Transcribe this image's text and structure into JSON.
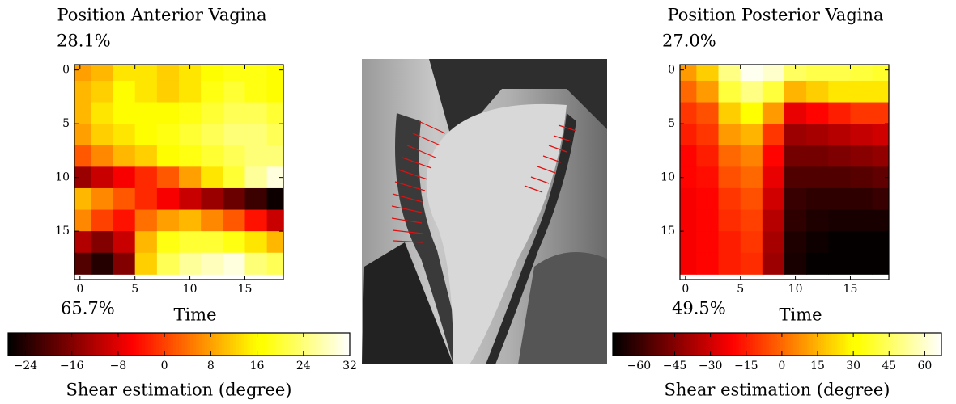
{
  "chart_data": [
    {
      "type": "heatmap",
      "title": "Position Anterior Vagina",
      "annotations": [
        "28.1%",
        "65.7%"
      ],
      "xlabel": "Time",
      "x": [
        0,
        2,
        4,
        6,
        8,
        10,
        12,
        14,
        16,
        18
      ],
      "y": [
        0,
        2,
        4,
        6,
        8,
        10,
        12,
        14,
        16,
        18
      ],
      "z": [
        [
          8,
          10,
          14,
          14,
          12,
          14,
          16,
          18,
          18,
          16
        ],
        [
          10,
          12,
          16,
          14,
          12,
          14,
          18,
          20,
          18,
          16
        ],
        [
          10,
          14,
          16,
          16,
          16,
          18,
          20,
          22,
          22,
          20
        ],
        [
          8,
          12,
          14,
          16,
          18,
          20,
          22,
          24,
          24,
          22
        ],
        [
          2,
          6,
          10,
          12,
          16,
          18,
          20,
          22,
          24,
          24
        ],
        [
          -14,
          -10,
          -6,
          -2,
          2,
          8,
          14,
          20,
          26,
          30
        ],
        [
          10,
          6,
          2,
          -2,
          -6,
          -10,
          -14,
          -18,
          -22,
          -26
        ],
        [
          6,
          0,
          -4,
          4,
          8,
          10,
          6,
          2,
          -4,
          -10
        ],
        [
          -12,
          -16,
          -10,
          10,
          18,
          20,
          20,
          18,
          14,
          10
        ],
        [
          -20,
          -24,
          -16,
          12,
          22,
          26,
          28,
          30,
          24,
          22
        ]
      ],
      "xlim": [
        -0.5,
        18.5
      ],
      "ylim": [
        19.5,
        -0.5
      ],
      "xticks": [
        0,
        5,
        10,
        15
      ],
      "yticks": [
        0,
        5,
        10,
        15
      ],
      "colormap": "hot",
      "zlim": [
        -27,
        32
      ],
      "zticks": [
        {
          "value": -24,
          "label": "−24"
        },
        {
          "value": -16,
          "label": "−16"
        },
        {
          "value": -8,
          "label": "−8"
        },
        0,
        8,
        16,
        24,
        32
      ],
      "colorbar_label": "Shear estimation (degree)"
    },
    {
      "type": "heatmap",
      "title": "Position Posterior Vagina",
      "annotations": [
        "27.0%",
        "49.5%"
      ],
      "xlabel": "Time",
      "x": [
        0,
        2,
        4,
        6,
        8,
        10,
        12,
        14,
        16,
        18
      ],
      "y": [
        0,
        2,
        4,
        6,
        8,
        10,
        12,
        14,
        16,
        18
      ],
      "z": [
        [
          10,
          20,
          50,
          65,
          60,
          45,
          42,
          42,
          40,
          38
        ],
        [
          0,
          10,
          40,
          50,
          40,
          15,
          20,
          25,
          25,
          25
        ],
        [
          -10,
          -5,
          20,
          30,
          10,
          -25,
          -20,
          -15,
          -10,
          -10
        ],
        [
          -15,
          -10,
          10,
          15,
          -10,
          -40,
          -38,
          -35,
          -32,
          -30
        ],
        [
          -20,
          -15,
          0,
          5,
          -20,
          -48,
          -48,
          -46,
          -44,
          -42
        ],
        [
          -20,
          -18,
          -5,
          0,
          -25,
          -55,
          -55,
          -55,
          -54,
          -52
        ],
        [
          -22,
          -20,
          -10,
          -5,
          -30,
          -60,
          -62,
          -62,
          -62,
          -60
        ],
        [
          -22,
          -20,
          -12,
          -8,
          -35,
          -62,
          -65,
          -66,
          -66,
          -66
        ],
        [
          -22,
          -20,
          -15,
          -10,
          -38,
          -65,
          -68,
          -70,
          -70,
          -70
        ],
        [
          -22,
          -20,
          -15,
          -12,
          -40,
          -66,
          -70,
          -70,
          -70,
          -70
        ]
      ],
      "xlim": [
        -0.5,
        18.5
      ],
      "ylim": [
        19.5,
        -0.5
      ],
      "xticks": [
        0,
        5,
        10,
        15
      ],
      "yticks": [
        0,
        5,
        10,
        15
      ],
      "colormap": "hot",
      "zlim": [
        -71,
        67
      ],
      "zticks": [
        {
          "value": -60,
          "label": "−60"
        },
        {
          "value": -45,
          "label": "−45"
        },
        {
          "value": -30,
          "label": "−30"
        },
        {
          "value": -15,
          "label": "−15"
        },
        0,
        15,
        30,
        45,
        60
      ],
      "colorbar_label": "Shear estimation (degree)"
    }
  ]
}
